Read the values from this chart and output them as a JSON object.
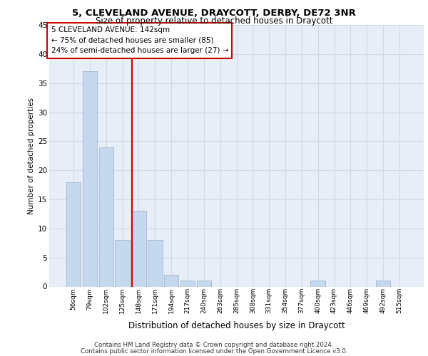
{
  "title_line1": "5, CLEVELAND AVENUE, DRAYCOTT, DERBY, DE72 3NR",
  "title_line2": "Size of property relative to detached houses in Draycott",
  "xlabel": "Distribution of detached houses by size in Draycott",
  "ylabel": "Number of detached properties",
  "bar_labels": [
    "56sqm",
    "79sqm",
    "102sqm",
    "125sqm",
    "148sqm",
    "171sqm",
    "194sqm",
    "217sqm",
    "240sqm",
    "263sqm",
    "285sqm",
    "308sqm",
    "331sqm",
    "354sqm",
    "377sqm",
    "400sqm",
    "423sqm",
    "446sqm",
    "469sqm",
    "492sqm",
    "515sqm"
  ],
  "bar_values": [
    18,
    37,
    24,
    8,
    13,
    8,
    2,
    1,
    1,
    0,
    0,
    0,
    0,
    0,
    0,
    1,
    0,
    0,
    0,
    1,
    0
  ],
  "bar_color": "#c5d8ed",
  "bar_edgecolor": "#a0b8d0",
  "ylim": [
    0,
    45
  ],
  "yticks": [
    0,
    5,
    10,
    15,
    20,
    25,
    30,
    35,
    40,
    45
  ],
  "vline_x": 3.57,
  "annotation_title": "5 CLEVELAND AVENUE: 142sqm",
  "annotation_line1": "← 75% of detached houses are smaller (85)",
  "annotation_line2": "24% of semi-detached houses are larger (27) →",
  "vline_color": "#cc0000",
  "annotation_box_edgecolor": "#cc0000",
  "grid_color": "#d0d8e8",
  "background_color": "#e8eef7",
  "footer_line1": "Contains HM Land Registry data © Crown copyright and database right 2024.",
  "footer_line2": "Contains public sector information licensed under the Open Government Licence v3.0."
}
